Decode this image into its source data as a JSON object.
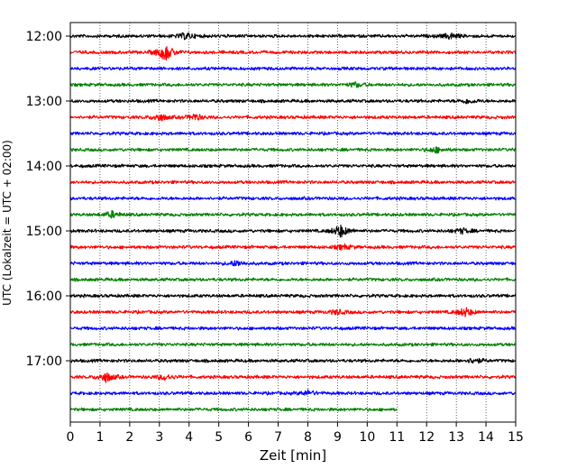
{
  "chart_data": {
    "type": "line",
    "title": "",
    "xlabel": "Zeit  [min]",
    "ylabel": "UTC (Lokalzeit = UTC + 02:00)",
    "xlim": [
      0,
      15
    ],
    "x_ticks": [
      0,
      1,
      2,
      3,
      4,
      5,
      6,
      7,
      8,
      9,
      10,
      11,
      12,
      13,
      14,
      15
    ],
    "y_tick_labels": [
      "12:00",
      "13:00",
      "14:00",
      "15:00",
      "16:00",
      "17:00"
    ],
    "grid": "vertical dotted",
    "color_cycle": [
      "#000000",
      "#ff0000",
      "#0000ff",
      "#008000"
    ],
    "traces": [
      {
        "start": "12:00",
        "duration_min": 15,
        "color": "#000000",
        "events": [
          {
            "t": 3.9,
            "amp": 1.6
          },
          {
            "t": 12.8,
            "amp": 1.4
          }
        ]
      },
      {
        "start": "12:15",
        "duration_min": 15,
        "color": "#ff0000",
        "events": [
          {
            "t": 3.2,
            "amp": 4.2
          }
        ]
      },
      {
        "start": "12:30",
        "duration_min": 15,
        "color": "#0000ff",
        "events": []
      },
      {
        "start": "12:45",
        "duration_min": 15,
        "color": "#008000",
        "events": [
          {
            "t": 9.6,
            "amp": 1.1
          }
        ]
      },
      {
        "start": "13:00",
        "duration_min": 15,
        "color": "#000000",
        "events": [
          {
            "t": 13.4,
            "amp": 1.1
          }
        ]
      },
      {
        "start": "13:15",
        "duration_min": 15,
        "color": "#ff0000",
        "events": [
          {
            "t": 3.0,
            "amp": 1.9
          },
          {
            "t": 4.2,
            "amp": 1.5
          }
        ]
      },
      {
        "start": "13:30",
        "duration_min": 15,
        "color": "#0000ff",
        "events": []
      },
      {
        "start": "13:45",
        "duration_min": 15,
        "color": "#008000",
        "events": [
          {
            "t": 12.3,
            "amp": 1.3
          }
        ]
      },
      {
        "start": "14:00",
        "duration_min": 15,
        "color": "#000000",
        "events": []
      },
      {
        "start": "14:15",
        "duration_min": 15,
        "color": "#ff0000",
        "events": []
      },
      {
        "start": "14:30",
        "duration_min": 15,
        "color": "#0000ff",
        "events": []
      },
      {
        "start": "14:45",
        "duration_min": 15,
        "color": "#008000",
        "events": [
          {
            "t": 1.4,
            "amp": 1.5
          }
        ]
      },
      {
        "start": "15:00",
        "duration_min": 15,
        "color": "#000000",
        "events": [
          {
            "t": 9.1,
            "amp": 3.0
          },
          {
            "t": 13.2,
            "amp": 1.2
          }
        ]
      },
      {
        "start": "15:15",
        "duration_min": 15,
        "color": "#ff0000",
        "events": [
          {
            "t": 9.2,
            "amp": 1.2
          }
        ]
      },
      {
        "start": "15:30",
        "duration_min": 15,
        "color": "#0000ff",
        "events": [
          {
            "t": 5.6,
            "amp": 1.4
          }
        ]
      },
      {
        "start": "15:45",
        "duration_min": 15,
        "color": "#008000",
        "events": []
      },
      {
        "start": "16:00",
        "duration_min": 15,
        "color": "#000000",
        "events": []
      },
      {
        "start": "16:15",
        "duration_min": 15,
        "color": "#ff0000",
        "events": [
          {
            "t": 13.3,
            "amp": 2.2
          },
          {
            "t": 9.0,
            "amp": 1.1
          }
        ]
      },
      {
        "start": "16:30",
        "duration_min": 15,
        "color": "#0000ff",
        "events": []
      },
      {
        "start": "16:45",
        "duration_min": 15,
        "color": "#008000",
        "events": []
      },
      {
        "start": "17:00",
        "duration_min": 15,
        "color": "#000000",
        "events": [
          {
            "t": 13.6,
            "amp": 1.3
          }
        ]
      },
      {
        "start": "17:15",
        "duration_min": 15,
        "color": "#ff0000",
        "events": [
          {
            "t": 1.2,
            "amp": 2.4
          },
          {
            "t": 3.2,
            "amp": 1.4
          }
        ]
      },
      {
        "start": "17:30",
        "duration_min": 15,
        "color": "#0000ff",
        "events": [
          {
            "t": 8.0,
            "amp": 1.2
          }
        ]
      },
      {
        "start": "17:45",
        "duration_min": 11,
        "color": "#008000",
        "events": []
      }
    ]
  }
}
